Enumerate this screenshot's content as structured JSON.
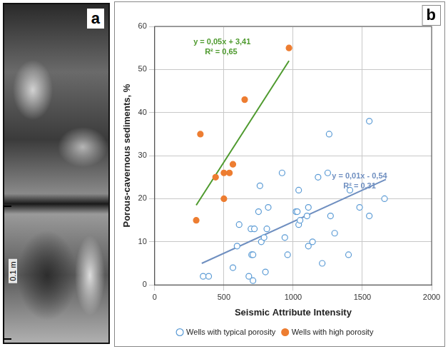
{
  "photo": {
    "panel_label": "a",
    "scale_bar": "0.1 m"
  },
  "chart_data": {
    "type": "scatter",
    "panel_label": "b",
    "x_label": "Seismic Attribute Intensity",
    "y_label": "Porous-cavernous sediments, %",
    "xlim": [
      0,
      2000
    ],
    "xticks": [
      0,
      500,
      1000,
      1500,
      2000
    ],
    "ylim": [
      0,
      60
    ],
    "yticks": [
      0,
      10,
      20,
      30,
      40,
      50,
      60
    ],
    "grid": true,
    "legend": "bottom",
    "series": [
      {
        "name": "Wells with typical porosity",
        "color": "#5b9bd5",
        "marker": "open_circle",
        "x": [
          350,
          390,
          565,
          595,
          610,
          680,
          695,
          700,
          710,
          710,
          720,
          750,
          760,
          770,
          790,
          800,
          810,
          820,
          920,
          940,
          960,
          1020,
          1030,
          1040,
          1040,
          1050,
          1100,
          1110,
          1110,
          1140,
          1180,
          1210,
          1250,
          1260,
          1270,
          1300,
          1400,
          1410,
          1480,
          1550,
          1550,
          1660
        ],
        "values": [
          2,
          2,
          4,
          9,
          14,
          2,
          13,
          7,
          7,
          1,
          13,
          17,
          23,
          10,
          11,
          3,
          13,
          18,
          26,
          11,
          7,
          17,
          17,
          22,
          14,
          15,
          16,
          9,
          18,
          10,
          25,
          5,
          26,
          35,
          16,
          12,
          7,
          22,
          18,
          38,
          16,
          20
        ]
      },
      {
        "name": "Wells with high porosity",
        "color": "#ed7d31",
        "marker": "filled_circle",
        "x": [
          300,
          330,
          440,
          500,
          500,
          540,
          565,
          650,
          970
        ],
        "values": [
          15,
          35,
          25,
          20,
          26,
          26,
          28,
          43,
          55
        ]
      }
    ],
    "trendlines": [
      {
        "equation": "y = 0,05x + 3,41",
        "r2": "R² = 0,65",
        "color": "#4e9a2e",
        "x": [
          300,
          970
        ],
        "values": [
          18.5,
          52
        ]
      },
      {
        "equation": "y = 0,01x - 0,54",
        "r2": "R² = 0,31",
        "color": "#6f8fc0",
        "x": [
          340,
          1670
        ],
        "values": [
          5,
          24.5
        ]
      }
    ]
  }
}
